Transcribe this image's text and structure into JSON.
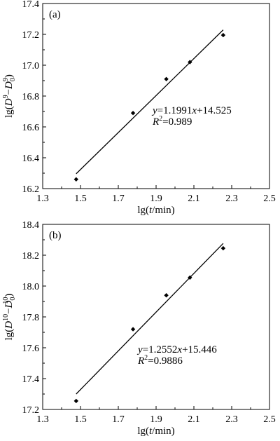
{
  "chart_data": [
    {
      "type": "scatter",
      "panel_label": "(a)",
      "xlabel": "lg(t/min)",
      "ylabel": "lg(D^9−D_0^9)",
      "xlim": [
        1.3,
        2.5
      ],
      "ylim": [
        16.2,
        17.4
      ],
      "xticks": [
        1.3,
        1.5,
        1.7,
        1.9,
        2.1,
        2.3,
        2.5
      ],
      "yticks": [
        16.2,
        16.4,
        16.6,
        16.8,
        17.0,
        17.2,
        17.4
      ],
      "x": [
        1.477,
        1.778,
        1.954,
        2.079,
        2.255
      ],
      "y": [
        16.26,
        16.69,
        16.91,
        17.02,
        17.195
      ],
      "fit": {
        "slope": 1.1991,
        "intercept": 14.525,
        "x_range": [
          1.477,
          2.255
        ]
      },
      "equation": "y=1.1991x+14.525",
      "r2": "R2=0.989",
      "grid": false,
      "marker": "diamond"
    },
    {
      "type": "scatter",
      "panel_label": "(b)",
      "xlabel": "lg(t/min)",
      "ylabel": "lg(D^10−D_0^10)",
      "xlim": [
        1.3,
        2.5
      ],
      "ylim": [
        17.2,
        18.4
      ],
      "xticks": [
        1.3,
        1.5,
        1.7,
        1.9,
        2.1,
        2.3,
        2.5
      ],
      "yticks": [
        17.2,
        17.4,
        17.6,
        17.8,
        18.0,
        18.2,
        18.4
      ],
      "x": [
        1.477,
        1.778,
        1.954,
        2.079,
        2.255
      ],
      "y": [
        17.255,
        17.72,
        17.94,
        18.055,
        18.245
      ],
      "fit": {
        "slope": 1.2552,
        "intercept": 15.446,
        "x_range": [
          1.477,
          2.255
        ]
      },
      "equation": "y=1.2552x+15.446",
      "r2": "R2=0.9886",
      "grid": false,
      "marker": "diamond"
    }
  ],
  "text": {
    "panel_a": {
      "label": "(a)",
      "xlabel_prefix": "lg(",
      "xlabel_var": "t",
      "xlabel_suffix": "/min)",
      "ylabel_prefix": "lg(",
      "ylabel_var1": "D",
      "ylabel_sup1": "9",
      "ylabel_minus": "−",
      "ylabel_var2": "D",
      "ylabel_sub2": "0",
      "ylabel_sup2": "9",
      "ylabel_suffix": ")",
      "eq_var_y": "y",
      "eq_mid": "=1.1991",
      "eq_var_x": "x",
      "eq_end": "+14.525",
      "r2_var": "R",
      "r2_sup": "2",
      "r2_val": "=0.989"
    },
    "panel_b": {
      "label": "(b)",
      "xlabel_prefix": "lg(",
      "xlabel_var": "t",
      "xlabel_suffix": "/min)",
      "ylabel_prefix": "lg(",
      "ylabel_var1": "D",
      "ylabel_sup1": "10",
      "ylabel_minus": "−",
      "ylabel_var2": "D",
      "ylabel_sub2": "0",
      "ylabel_sup2": "10",
      "ylabel_suffix": ")",
      "eq_var_y": "y",
      "eq_mid": "=1.2552",
      "eq_var_x": "x",
      "eq_end": "+15.446",
      "r2_var": "R",
      "r2_sup": "2",
      "r2_val": "=0.9886"
    }
  }
}
